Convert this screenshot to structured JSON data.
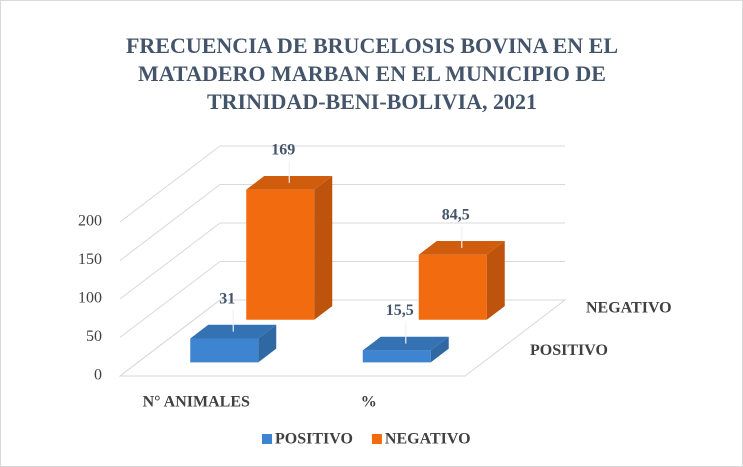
{
  "chart_data": {
    "type": "bar3d",
    "title": [
      "FRECUENCIA DE BRUCELOSIS BOVINA EN EL",
      "MATADERO MARBAN EN EL MUNICIPIO DE",
      "TRINIDAD-BENI-BOLIVIA, 2021"
    ],
    "categories": [
      "N° ANIMALES",
      "%"
    ],
    "series": [
      {
        "name": "POSITIVO",
        "color": "#3d85d1",
        "values": [
          31,
          15.5
        ],
        "value_labels": [
          "31",
          "15,5"
        ]
      },
      {
        "name": "NEGATIVO",
        "color": "#f26b0f",
        "values": [
          169,
          84.5
        ],
        "value_labels": [
          "169",
          "84,5"
        ]
      }
    ],
    "ylim": [
      0,
      200
    ],
    "yticks": [
      0,
      50,
      100,
      150,
      200
    ],
    "grid": true,
    "legend": "bottom"
  }
}
